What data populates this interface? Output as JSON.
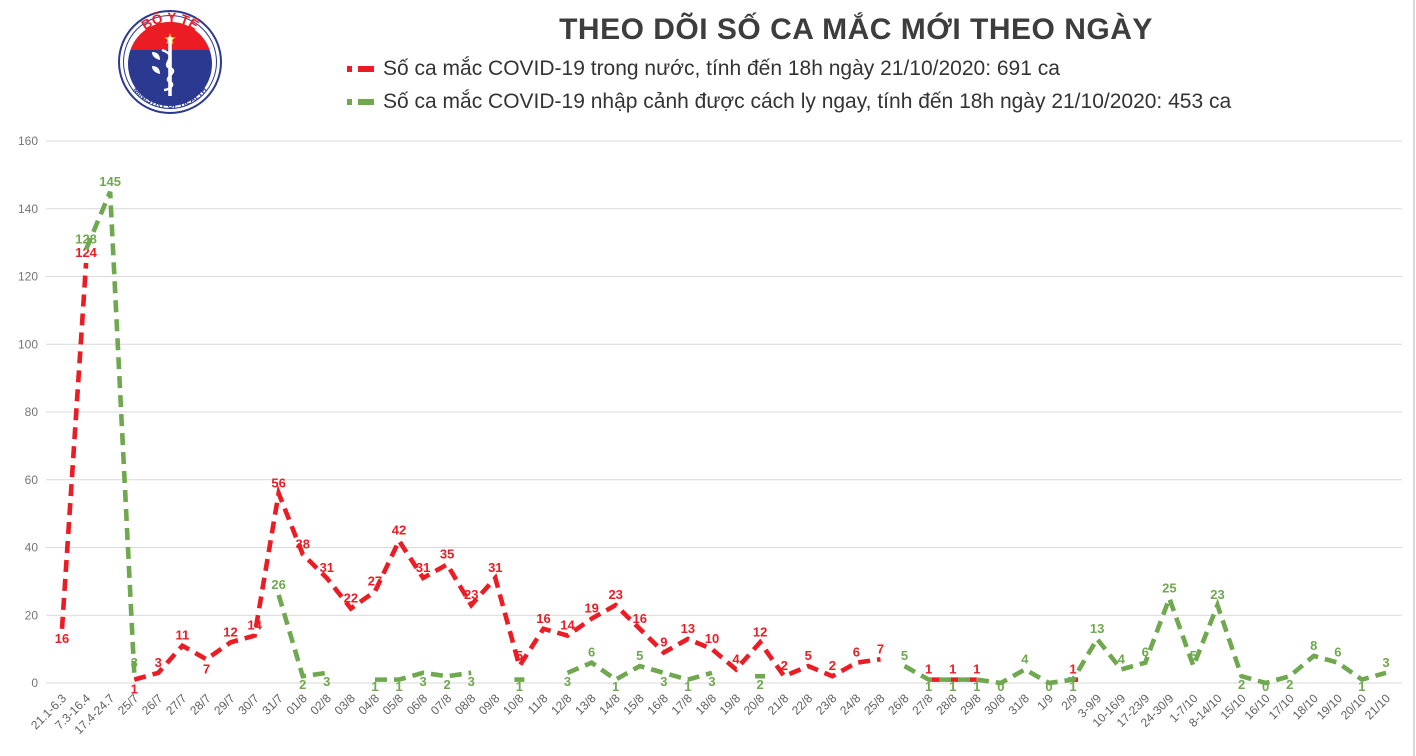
{
  "logo": {
    "top_text": "BỘ Y TẾ",
    "bottom_text": "MINISTRY OF HEALTH",
    "colors": {
      "blue": "#2b3990",
      "red": "#ec1c24",
      "star_yellow": "#ffd400"
    }
  },
  "title": "THEO DÕI SỐ CA MẮC MỚI THEO NGÀY",
  "legend": [
    {
      "label": "Số ca mắc COVID-19 trong nước, tính đến 18h ngày 21/10/2020: 691 ca",
      "color": "#ec1c24"
    },
    {
      "label": "Số ca mắc COVID-19 nhập cảnh được cách ly ngay, tính đến 18h ngày 21/10/2020: 453 ca",
      "color": "#6fa84f"
    }
  ],
  "chart_data": {
    "type": "line",
    "title": "THEO DÕI SỐ CA MẮC MỚI THEO NGÀY",
    "xlabel": "",
    "ylabel": "",
    "ylim": [
      0,
      160
    ],
    "yticks": [
      0,
      20,
      40,
      60,
      80,
      100,
      120,
      140,
      160
    ],
    "grid": true,
    "legend_position": "top",
    "line_style": "dashed",
    "categories": [
      "21.1-6.3",
      "7.3-16.4",
      "17.4-24.7",
      "25/7",
      "26/7",
      "27/7",
      "28/7",
      "29/7",
      "30/7",
      "31/7",
      "01/8",
      "02/8",
      "03/8",
      "04/8",
      "05/8",
      "06/8",
      "07/8",
      "08/8",
      "09/8",
      "10/8",
      "11/8",
      "12/8",
      "13/8",
      "14/8",
      "15/8",
      "16/8",
      "17/8",
      "18/8",
      "19/8",
      "20/8",
      "21/8",
      "22/8",
      "23/8",
      "24/8",
      "25/8",
      "26/8",
      "27/8",
      "28/8",
      "29/8",
      "30/8",
      "31/8",
      "1/9",
      "2/9",
      "3-9/9",
      "10-16/9",
      "17-23/9",
      "24-30/9",
      "1-7/10",
      "8-14/10",
      "15/10",
      "16/10",
      "17/10",
      "18/10",
      "19/10",
      "20/10",
      "21/10"
    ],
    "series": [
      {
        "name": "Số ca mắc COVID-19 trong nước (tổng 691 ca)",
        "color": "#ec1c24",
        "values": [
          16,
          124,
          null,
          1,
          3,
          11,
          7,
          12,
          14,
          56,
          38,
          31,
          22,
          27,
          42,
          31,
          35,
          23,
          31,
          5,
          16,
          14,
          19,
          23,
          16,
          9,
          13,
          10,
          4,
          12,
          2,
          5,
          2,
          6,
          7,
          null,
          1,
          1,
          1,
          null,
          null,
          null,
          1,
          null,
          null,
          null,
          null,
          null,
          null,
          null,
          null,
          null,
          null,
          null,
          null,
          null
        ]
      },
      {
        "name": "Số ca mắc COVID-19 nhập cảnh được cách ly ngay (tổng 453 ca)",
        "color": "#6fa84f",
        "values": [
          null,
          128,
          145,
          3,
          null,
          null,
          null,
          null,
          null,
          26,
          2,
          3,
          null,
          1,
          1,
          3,
          2,
          3,
          null,
          1,
          null,
          3,
          6,
          1,
          5,
          3,
          1,
          3,
          null,
          2,
          null,
          null,
          null,
          null,
          null,
          5,
          1,
          1,
          1,
          0,
          4,
          0,
          1,
          13,
          4,
          6,
          25,
          5,
          23,
          2,
          0,
          2,
          8,
          6,
          1,
          3
        ]
      }
    ]
  }
}
